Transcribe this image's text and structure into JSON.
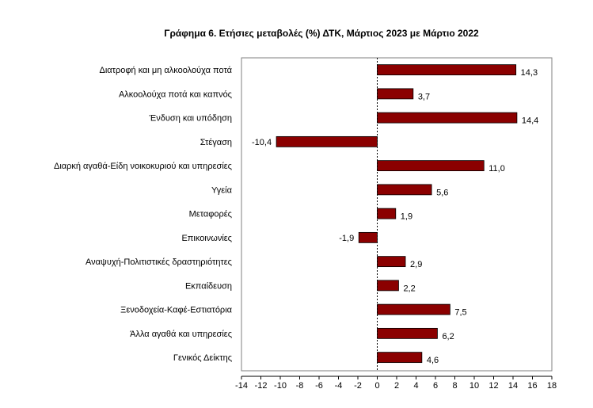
{
  "chart_data": {
    "type": "bar",
    "orientation": "horizontal",
    "title": "Γράφημα 6. Ετήσιες μεταβολές (%) ΔΤΚ, Μάρτιος 2023 με Μάρτιο 2022",
    "categories": [
      "Διατροφή και μη αλκοολούχα ποτά",
      "Αλκοολούχα ποτά και καπνός",
      "Ένδυση και υπόδηση",
      "Στέγαση",
      "Διαρκή αγαθά-Είδη νοικοκυριού και υπηρεσίες",
      "Υγεία",
      "Μεταφορές",
      "Επικοινωνίες",
      "Αναψυχή-Πολιτιστικές δραστηριότητες",
      "Εκπαίδευση",
      "Ξενοδοχεία-Καφέ-Εστιατόρια",
      "Άλλα αγαθά και υπηρεσίες",
      "Γενικός Δείκτης"
    ],
    "values": [
      14.3,
      3.7,
      14.4,
      -10.4,
      11.0,
      5.6,
      1.9,
      -1.9,
      2.9,
      2.2,
      7.5,
      6.2,
      4.6
    ],
    "value_labels": [
      "14,3",
      "3,7",
      "14,4",
      "-10,4",
      "11,0",
      "5,6",
      "1,9",
      "-1,9",
      "2,9",
      "2,2",
      "7,5",
      "6,2",
      "4,6"
    ],
    "xlim": [
      -14,
      18
    ],
    "xticks": [
      -14,
      -12,
      -10,
      -8,
      -6,
      -4,
      -2,
      0,
      2,
      4,
      6,
      8,
      10,
      12,
      14,
      16,
      18
    ],
    "xlabel": "",
    "ylabel": "",
    "grid": false,
    "legend": "none",
    "bar_color": "#8b0000"
  }
}
